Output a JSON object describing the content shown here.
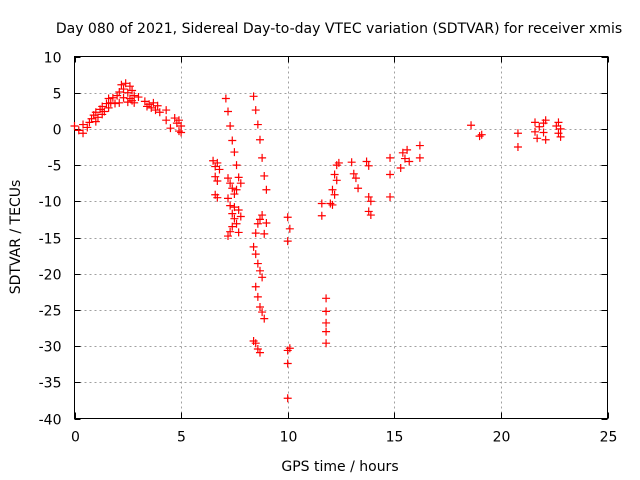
{
  "chart_data": {
    "type": "scatter",
    "title": "Day 080 of 2021, Sidereal Day-to-day VTEC variation (SDTVAR) for receiver xmis",
    "xlabel": "GPS time / hours",
    "ylabel": "SDTVAR / TECUs",
    "xlim": [
      0,
      25
    ],
    "ylim": [
      -40,
      10
    ],
    "xticks": [
      0,
      5,
      10,
      15,
      20,
      25
    ],
    "yticks": [
      10,
      5,
      0,
      -5,
      -10,
      -15,
      -20,
      -25,
      -30,
      -35,
      -40
    ],
    "grid": true,
    "marker": "+",
    "marker_color": "#ff0000",
    "series": [
      {
        "name": "SDTVAR",
        "points": [
          [
            0.0,
            0.4
          ],
          [
            0.2,
            -0.2
          ],
          [
            0.4,
            0.6
          ],
          [
            0.4,
            -0.6
          ],
          [
            0.6,
            0.2
          ],
          [
            0.7,
            0.9
          ],
          [
            0.8,
            1.4
          ],
          [
            0.9,
            1.9
          ],
          [
            1.0,
            1.0
          ],
          [
            1.0,
            2.3
          ],
          [
            1.1,
            1.6
          ],
          [
            1.2,
            2.7
          ],
          [
            1.3,
            2.0
          ],
          [
            1.3,
            3.1
          ],
          [
            1.4,
            2.4
          ],
          [
            1.5,
            3.5
          ],
          [
            1.6,
            2.9
          ],
          [
            1.6,
            4.2
          ],
          [
            1.7,
            3.6
          ],
          [
            1.8,
            4.3
          ],
          [
            1.9,
            3.5
          ],
          [
            2.0,
            4.6
          ],
          [
            2.1,
            5.1
          ],
          [
            2.1,
            3.6
          ],
          [
            2.2,
            6.1
          ],
          [
            2.3,
            4.3
          ],
          [
            2.3,
            5.5
          ],
          [
            2.4,
            6.3
          ],
          [
            2.5,
            3.7
          ],
          [
            2.5,
            5.0
          ],
          [
            2.6,
            5.9
          ],
          [
            2.6,
            4.2
          ],
          [
            2.7,
            3.9
          ],
          [
            2.7,
            5.3
          ],
          [
            2.8,
            4.6
          ],
          [
            2.8,
            3.6
          ],
          [
            3.0,
            4.4
          ],
          [
            3.3,
            3.8
          ],
          [
            3.4,
            3.1
          ],
          [
            3.5,
            3.4
          ],
          [
            3.6,
            2.9
          ],
          [
            3.7,
            3.6
          ],
          [
            3.8,
            2.6
          ],
          [
            3.9,
            3.2
          ],
          [
            4.0,
            2.3
          ],
          [
            4.3,
            2.6
          ],
          [
            4.3,
            1.2
          ],
          [
            4.5,
            0.1
          ],
          [
            4.7,
            1.5
          ],
          [
            4.8,
            0.8
          ],
          [
            4.9,
            1.2
          ],
          [
            4.9,
            -0.3
          ],
          [
            5.0,
            0.4
          ],
          [
            5.0,
            -0.5
          ],
          [
            6.5,
            -4.4
          ],
          [
            6.6,
            -5.2
          ],
          [
            6.6,
            -6.6
          ],
          [
            6.7,
            -7.2
          ],
          [
            6.6,
            -9.1
          ],
          [
            6.7,
            -9.5
          ],
          [
            6.7,
            -4.7
          ],
          [
            6.8,
            -5.6
          ],
          [
            7.1,
            4.2
          ],
          [
            7.2,
            2.4
          ],
          [
            7.2,
            -6.8
          ],
          [
            7.2,
            -9.6
          ],
          [
            7.2,
            -14.8
          ],
          [
            7.3,
            0.4
          ],
          [
            7.3,
            -7.5
          ],
          [
            7.3,
            -10.6
          ],
          [
            7.3,
            -14.2
          ],
          [
            7.4,
            -1.6
          ],
          [
            7.4,
            -8.2
          ],
          [
            7.4,
            -11.7
          ],
          [
            7.4,
            -13.5
          ],
          [
            7.5,
            -3.2
          ],
          [
            7.5,
            -9.0
          ],
          [
            7.5,
            -10.8
          ],
          [
            7.5,
            -12.4
          ],
          [
            7.6,
            -5.0
          ],
          [
            7.6,
            -8.4
          ],
          [
            7.6,
            -13.1
          ],
          [
            7.7,
            -6.7
          ],
          [
            7.7,
            -11.2
          ],
          [
            7.7,
            -14.3
          ],
          [
            7.8,
            -7.5
          ],
          [
            7.8,
            -12.1
          ],
          [
            8.4,
            4.5
          ],
          [
            8.4,
            -16.3
          ],
          [
            8.4,
            -29.3
          ],
          [
            8.5,
            2.6
          ],
          [
            8.5,
            -14.4
          ],
          [
            8.5,
            -17.3
          ],
          [
            8.5,
            -21.8
          ],
          [
            8.5,
            -29.6
          ],
          [
            8.6,
            0.6
          ],
          [
            8.6,
            -13.1
          ],
          [
            8.6,
            -18.6
          ],
          [
            8.6,
            -23.2
          ],
          [
            8.6,
            -30.4
          ],
          [
            8.7,
            -1.5
          ],
          [
            8.7,
            -12.5
          ],
          [
            8.7,
            -19.6
          ],
          [
            8.7,
            -24.6
          ],
          [
            8.7,
            -30.9
          ],
          [
            8.8,
            -4.0
          ],
          [
            8.8,
            -11.9
          ],
          [
            8.8,
            -20.5
          ],
          [
            8.8,
            -25.3
          ],
          [
            8.9,
            -6.5
          ],
          [
            8.9,
            -14.5
          ],
          [
            8.9,
            -26.2
          ],
          [
            9.0,
            -8.4
          ],
          [
            9.0,
            -13.0
          ],
          [
            10.0,
            -12.2
          ],
          [
            10.0,
            -15.5
          ],
          [
            10.0,
            -30.6
          ],
          [
            10.0,
            -32.4
          ],
          [
            10.0,
            -37.2
          ],
          [
            10.1,
            -13.8
          ],
          [
            10.1,
            -30.3
          ],
          [
            11.6,
            -10.3
          ],
          [
            11.6,
            -12.0
          ],
          [
            11.8,
            -23.4
          ],
          [
            11.8,
            -25.2
          ],
          [
            11.8,
            -26.8
          ],
          [
            11.8,
            -28.0
          ],
          [
            11.8,
            -29.6
          ],
          [
            12.0,
            -10.3
          ],
          [
            12.1,
            -10.5
          ],
          [
            12.1,
            -8.4
          ],
          [
            12.2,
            -9.1
          ],
          [
            12.2,
            -6.3
          ],
          [
            12.3,
            -7.1
          ],
          [
            12.3,
            -5.0
          ],
          [
            12.4,
            -4.7
          ],
          [
            13.0,
            -4.6
          ],
          [
            13.1,
            -6.2
          ],
          [
            13.2,
            -6.8
          ],
          [
            13.3,
            -8.2
          ],
          [
            13.7,
            -4.5
          ],
          [
            13.8,
            -5.1
          ],
          [
            13.8,
            -9.4
          ],
          [
            13.8,
            -11.4
          ],
          [
            13.9,
            -10.0
          ],
          [
            13.9,
            -11.9
          ],
          [
            14.8,
            -4.0
          ],
          [
            14.8,
            -6.3
          ],
          [
            14.8,
            -9.4
          ],
          [
            15.3,
            -5.4
          ],
          [
            15.4,
            -3.3
          ],
          [
            15.5,
            -4.1
          ],
          [
            15.6,
            -2.9
          ],
          [
            15.7,
            -4.5
          ],
          [
            16.2,
            -2.3
          ],
          [
            16.2,
            -4.0
          ],
          [
            18.6,
            0.5
          ],
          [
            19.0,
            -1.0
          ],
          [
            19.1,
            -0.8
          ],
          [
            20.8,
            -0.6
          ],
          [
            20.8,
            -2.5
          ],
          [
            21.6,
            0.9
          ],
          [
            21.6,
            -0.4
          ],
          [
            21.7,
            -1.3
          ],
          [
            21.8,
            0.3
          ],
          [
            22.0,
            0.8
          ],
          [
            22.0,
            -0.5
          ],
          [
            22.1,
            -1.5
          ],
          [
            22.1,
            1.2
          ],
          [
            22.6,
            0.4
          ],
          [
            22.7,
            -0.6
          ],
          [
            22.7,
            0.9
          ],
          [
            22.8,
            -1.1
          ],
          [
            22.8,
            0.0
          ]
        ]
      }
    ]
  }
}
